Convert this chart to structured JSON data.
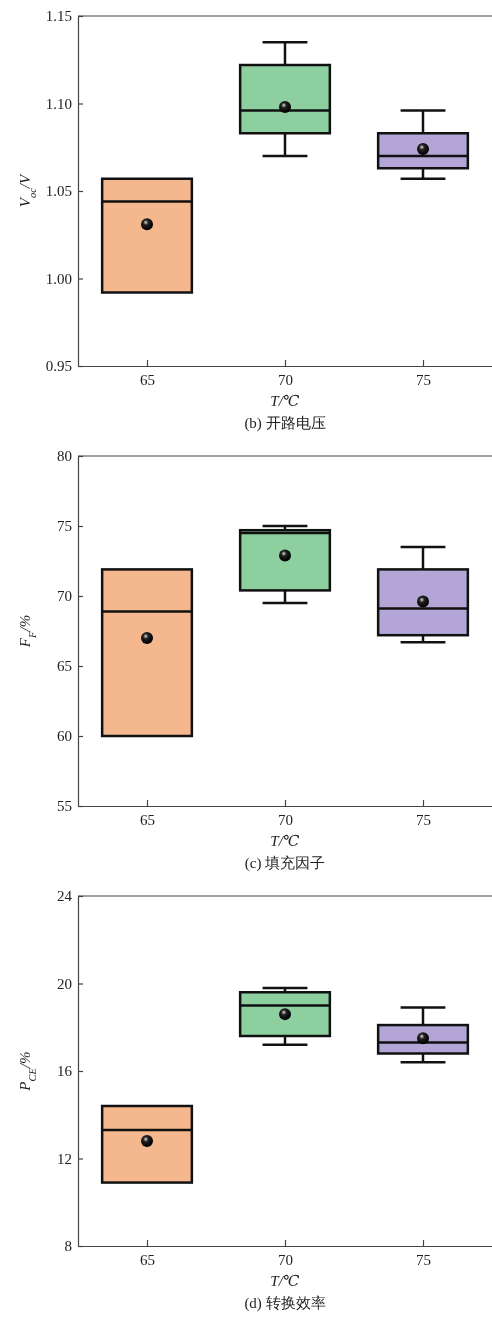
{
  "chart_data": [
    {
      "type": "box",
      "title": "(b) 开路电压",
      "xlabel": "T/℃",
      "ylabel": "V$_{oc}$/V",
      "categories": [
        "65",
        "70",
        "75"
      ],
      "colors": [
        "#f5b88e",
        "#8dcf9e",
        "#b3a6d6"
      ],
      "ylim": [
        0.95,
        1.15
      ],
      "yticks": [
        0.95,
        {
          "value": 1.0,
          "label": "1.00"
        },
        1.05,
        {
          "value": 1.1,
          "label": "1.10"
        },
        1.15
      ],
      "boxes": [
        {
          "low": 0.992,
          "q1": 0.992,
          "median": 1.044,
          "q3": 1.057,
          "high": 1.057,
          "mean": 1.031
        },
        {
          "low": 1.07,
          "q1": 1.083,
          "median": 1.096,
          "q3": 1.122,
          "high": 1.135,
          "mean": 1.098
        },
        {
          "low": 1.057,
          "q1": 1.063,
          "median": 1.07,
          "q3": 1.083,
          "high": 1.096,
          "mean": 1.074
        }
      ]
    },
    {
      "type": "box",
      "title": "(c) 填充因子",
      "xlabel": "T/℃",
      "ylabel": "F$_{F}$/%",
      "categories": [
        "65",
        "70",
        "75"
      ],
      "colors": [
        "#f5b88e",
        "#8dcf9e",
        "#b3a6d6"
      ],
      "ylim": [
        55,
        80
      ],
      "yticks": [
        55,
        60,
        65,
        70,
        75,
        80
      ],
      "boxes": [
        {
          "low": 60.0,
          "q1": 60.0,
          "median": 68.9,
          "q3": 71.9,
          "high": 71.9,
          "mean": 67.0
        },
        {
          "low": 69.5,
          "q1": 70.4,
          "median": 74.5,
          "q3": 74.7,
          "high": 75.0,
          "mean": 72.9
        },
        {
          "low": 66.7,
          "q1": 67.2,
          "median": 69.1,
          "q3": 71.9,
          "high": 73.5,
          "mean": 69.6
        }
      ]
    },
    {
      "type": "box",
      "title": "(d) 转换效率",
      "xlabel": "T/℃",
      "ylabel": "P$_{CE}$/%",
      "categories": [
        "65",
        "70",
        "75"
      ],
      "colors": [
        "#f5b88e",
        "#8dcf9e",
        "#b3a6d6"
      ],
      "ylim": [
        8,
        24
      ],
      "yticks": [
        8,
        12,
        16,
        20,
        24
      ],
      "boxes": [
        {
          "low": 10.9,
          "q1": 10.9,
          "median": 13.3,
          "q3": 14.4,
          "high": 14.4,
          "mean": 12.8
        },
        {
          "low": 17.2,
          "q1": 17.6,
          "median": 19.0,
          "q3": 19.6,
          "high": 19.8,
          "mean": 18.6
        },
        {
          "low": 16.4,
          "q1": 16.8,
          "median": 17.3,
          "q3": 18.1,
          "high": 18.9,
          "mean": 17.5
        }
      ]
    }
  ]
}
